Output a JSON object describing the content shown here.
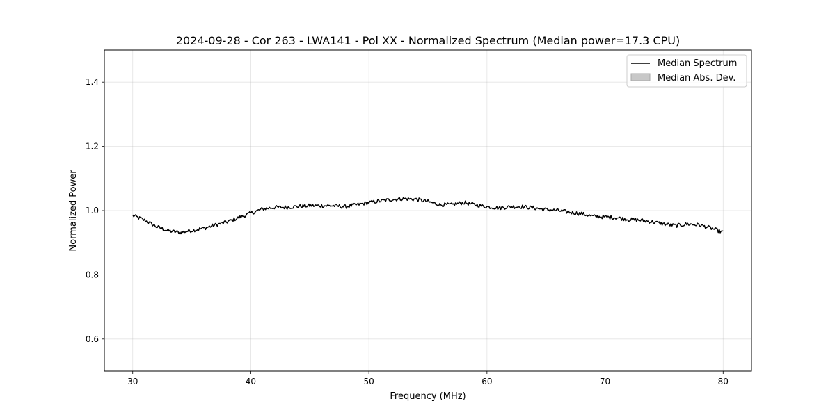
{
  "chart_data": {
    "type": "line",
    "title": "2024-09-28 - Cor 263 - LWA141 - Pol XX - Normalized Spectrum (Median power=17.3 CPU)",
    "xlabel": "Frequency (MHz)",
    "ylabel": "Normalized Power",
    "xlim": [
      27.6,
      82.4
    ],
    "ylim": [
      0.5,
      1.5
    ],
    "xticks": [
      30,
      40,
      50,
      60,
      70,
      80
    ],
    "xtick_labels": [
      "30",
      "40",
      "50",
      "60",
      "70",
      "80"
    ],
    "yticks": [
      0.6,
      0.8,
      1.0,
      1.2,
      1.4
    ],
    "ytick_labels": [
      "0.6",
      "0.8",
      "1.0",
      "1.2",
      "1.4"
    ],
    "grid": true,
    "legend": {
      "position": "top-right",
      "entries": [
        {
          "label": "Median Spectrum",
          "kind": "line",
          "color": "#000000"
        },
        {
          "label": "Median Abs. Dev.",
          "kind": "patch",
          "color": "#c8c8c8"
        }
      ]
    },
    "series": [
      {
        "name": "Median Spectrum",
        "color": "#000000",
        "x": [
          30,
          31,
          32,
          33,
          34,
          35,
          36,
          37,
          38,
          39,
          40,
          41,
          42,
          43,
          44,
          45,
          46,
          47,
          48,
          49,
          50,
          51,
          52,
          53,
          54,
          55,
          56,
          57,
          58,
          59,
          60,
          61,
          62,
          63,
          64,
          65,
          66,
          67,
          68,
          69,
          70,
          71,
          72,
          73,
          74,
          75,
          76,
          77,
          78,
          79,
          80
        ],
        "values": [
          0.985,
          0.97,
          0.95,
          0.937,
          0.932,
          0.938,
          0.945,
          0.955,
          0.965,
          0.978,
          0.992,
          1.005,
          1.01,
          1.01,
          1.013,
          1.015,
          1.015,
          1.015,
          1.012,
          1.018,
          1.025,
          1.03,
          1.035,
          1.037,
          1.035,
          1.028,
          1.018,
          1.018,
          1.025,
          1.018,
          1.012,
          1.008,
          1.012,
          1.012,
          1.008,
          1.003,
          1.0,
          0.995,
          0.99,
          0.982,
          0.98,
          0.978,
          0.972,
          0.97,
          0.965,
          0.958,
          0.953,
          0.958,
          0.955,
          0.945,
          0.932
        ]
      }
    ]
  }
}
